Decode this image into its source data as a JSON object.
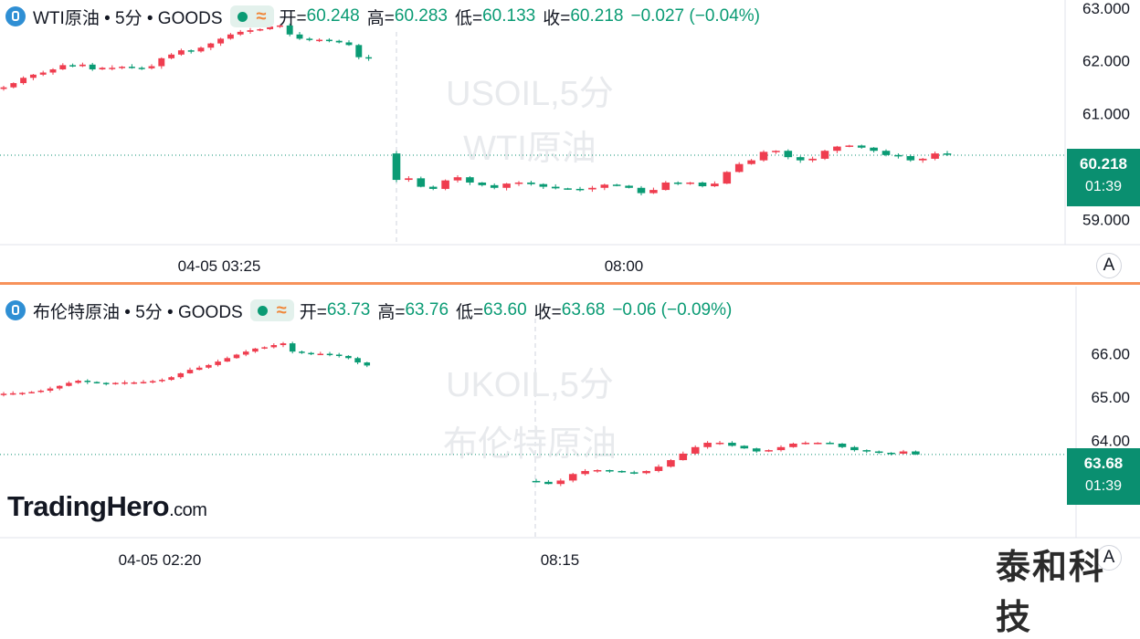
{
  "colors": {
    "up": "#ef3d4f",
    "down": "#0a9b74",
    "last_badge": "#0a8f70",
    "divider": "#f7925a",
    "watermark": "#e8eaed"
  },
  "chart_data": [
    {
      "type": "candlestick",
      "symbol_title": "WTI原油 • 5分 • GOODS",
      "watermark": [
        "USOIL,5分",
        "WTI原油"
      ],
      "ohlc": {
        "open_label": "开=",
        "open": "60.248",
        "high_label": "高=",
        "high": "60.283",
        "low_label": "低=",
        "low": "60.133",
        "close_label": "收=",
        "close": "60.218",
        "change": "−0.027 (−0.04%)"
      },
      "ylim": [
        58.75,
        63.1
      ],
      "yticks": [
        "63.000",
        "62.000",
        "61.000",
        "59.000"
      ],
      "x_tick_labels": [
        "04-05 03:25",
        "08:00"
      ],
      "last_price": "60.218",
      "countdown": "01:39",
      "scale_button": "A",
      "series_pre_gap": [
        61.5,
        61.58,
        61.68,
        61.74,
        61.78,
        61.84,
        61.92,
        61.9,
        61.93,
        61.84,
        61.87,
        61.87,
        61.89,
        61.87,
        61.86,
        61.9,
        62.05,
        62.12,
        62.2,
        62.18,
        62.25,
        62.33,
        62.42,
        62.5,
        62.55,
        62.58,
        62.6,
        62.65,
        62.67,
        62.5,
        62.42,
        62.4,
        62.4,
        62.38,
        62.35,
        62.3,
        62.07,
        62.05
      ],
      "series_post_gap": [
        59.75,
        59.78,
        59.62,
        59.58,
        59.74,
        59.8,
        59.7,
        59.65,
        59.6,
        59.68,
        59.7,
        59.67,
        59.62,
        59.59,
        59.58,
        59.57,
        59.6,
        59.66,
        59.64,
        59.6,
        59.5,
        59.56,
        59.7,
        59.68,
        59.7,
        59.63,
        59.68,
        59.9,
        60.05,
        60.12,
        60.28,
        60.3,
        60.18,
        60.12,
        60.15,
        60.3,
        60.38,
        60.4,
        60.36,
        60.3,
        60.22,
        60.2,
        60.12,
        60.15,
        60.25,
        60.24
      ]
    },
    {
      "type": "candlestick",
      "symbol_title": "布伦特原油 • 5分 • GOODS",
      "watermark": [
        "UKOIL,5分",
        "布伦特原油"
      ],
      "ohlc": {
        "open_label": "开=",
        "open": "63.73",
        "high_label": "高=",
        "high": "63.76",
        "low_label": "低=",
        "low": "63.60",
        "close_label": "收=",
        "close": "63.68",
        "change": "−0.06 (−0.09%)"
      },
      "ylim": [
        62.5,
        66.6
      ],
      "yticks": [
        "66.00",
        "65.00",
        "64.00"
      ],
      "x_tick_labels": [
        "04-05 02:20",
        "08:15"
      ],
      "last_price": "63.68",
      "countdown": "01:39",
      "scale_button": "A",
      "series_pre_gap": [
        65.08,
        65.09,
        65.1,
        65.12,
        65.15,
        65.2,
        65.26,
        65.33,
        65.38,
        65.35,
        65.33,
        65.3,
        65.33,
        65.34,
        65.34,
        65.35,
        65.37,
        65.4,
        65.46,
        65.55,
        65.63,
        65.68,
        65.74,
        65.82,
        65.9,
        65.98,
        66.05,
        66.12,
        66.15,
        66.2,
        66.24,
        66.05,
        66.02,
        66.0,
        66.0,
        65.98,
        65.95,
        65.9,
        65.8,
        65.73
      ],
      "series_post_gap": [
        63.05,
        63.0,
        63.08,
        63.23,
        63.3,
        63.32,
        63.3,
        63.27,
        63.25,
        63.3,
        63.4,
        63.55,
        63.7,
        63.85,
        63.95,
        63.95,
        63.88,
        63.82,
        63.75,
        63.78,
        63.85,
        63.93,
        63.95,
        63.95,
        63.93,
        63.85,
        63.78,
        63.75,
        63.72,
        63.7,
        63.75,
        63.68
      ]
    }
  ],
  "branding": {
    "logo_main": "TradingHero",
    "logo_suffix": ".com",
    "corner_mark": "泰和科技"
  }
}
